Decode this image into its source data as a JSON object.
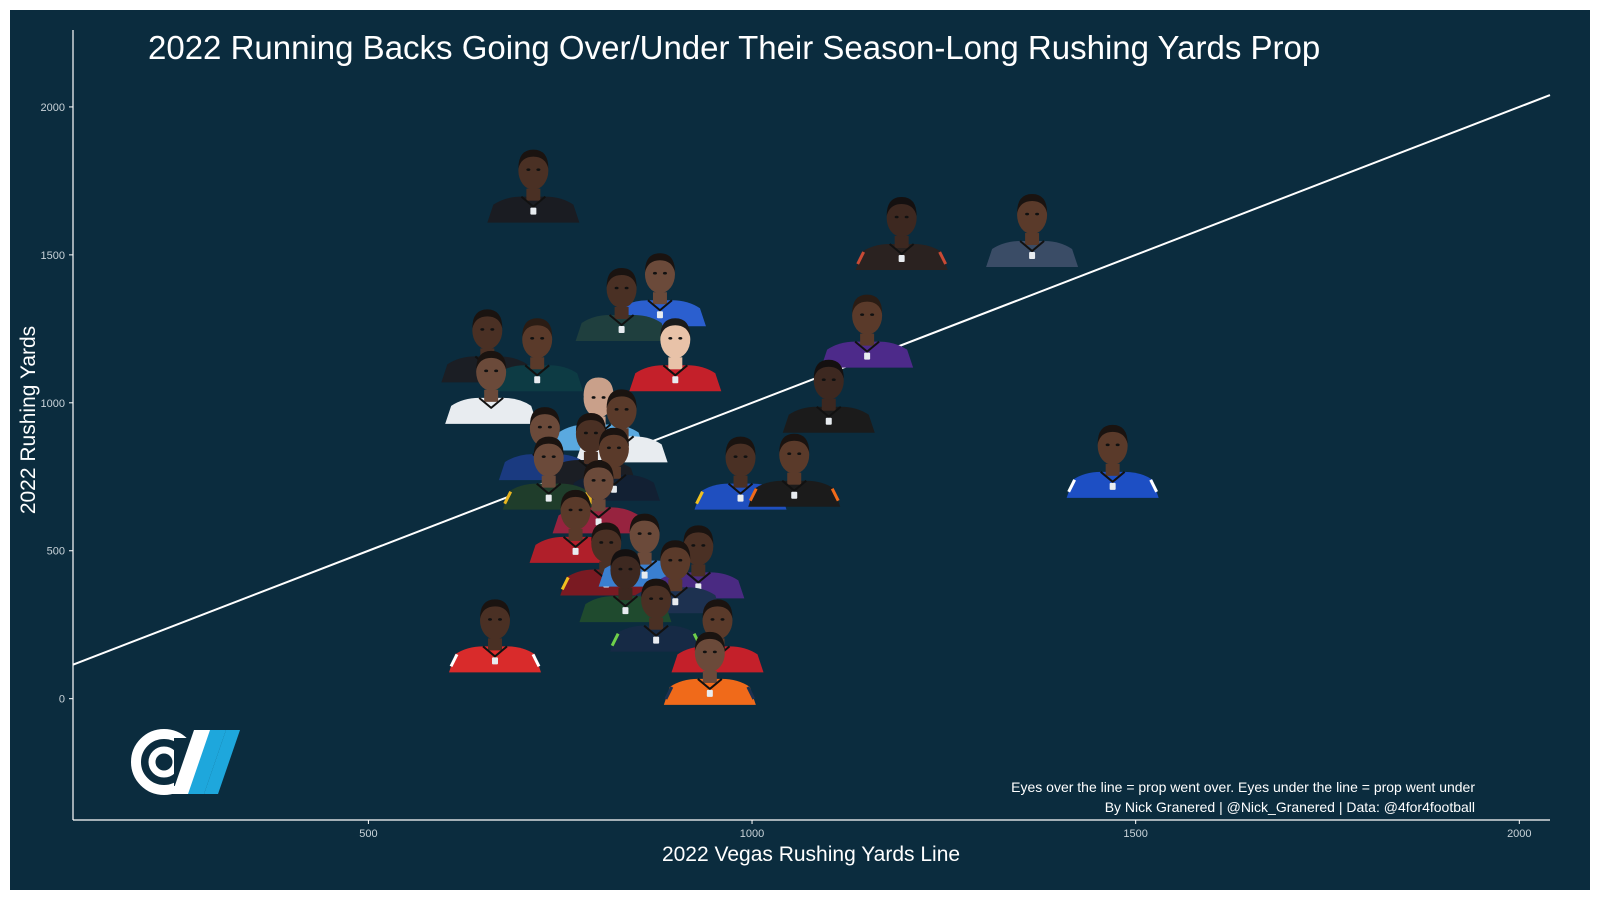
{
  "colors": {
    "background": "#0b2c3e",
    "frame": "#ffffff",
    "axis": "#ffffff",
    "reference_line": "#ffffff",
    "logo_white": "#ffffff",
    "logo_blue": "#1ea7dc"
  },
  "caption": {
    "line1": "Eyes over the line = prop went over. Eyes under the line = prop went under",
    "line2": "By Nick Granered | @Nick_Granered | Data: @4for4football"
  },
  "logo": {
    "icon": "cw-logo-icon"
  },
  "chart_data": {
    "type": "scatter",
    "title": "2022 Running Backs Going Over/Under Their Season-Long Rushing Yards Prop",
    "xlabel": "2022 Vegas Rushing Yards Line",
    "ylabel": "2022 Rushing Yards",
    "xlim": [
      115,
      2040
    ],
    "ylim": [
      -410,
      2260
    ],
    "x_ticks": [
      500,
      1000,
      1500,
      2000
    ],
    "y_ticks": [
      0,
      500,
      1000,
      1500,
      2000
    ],
    "x_tick_labels": [
      "500",
      "1000",
      "1500",
      "2000"
    ],
    "y_tick_labels": [
      "0",
      "500",
      "1000",
      "1500",
      "2000"
    ],
    "grid": false,
    "legend": "none",
    "reference_line": {
      "x1": 115,
      "y1": 115,
      "x2": 2040,
      "y2": 2040,
      "label": "y = x"
    },
    "marker": "player headshot",
    "points": [
      {
        "x": 715,
        "y": 1690,
        "jersey": "#1a1c22",
        "skin": "#4a3024",
        "hair": "#1a1310"
      },
      {
        "x": 1195,
        "y": 1530,
        "jersey": "#2a2220",
        "skin": "#3d2820",
        "hair": "#141010",
        "trim": "#c94a35"
      },
      {
        "x": 1365,
        "y": 1540,
        "jersey": "#3a4c66",
        "skin": "#5a3a2a",
        "hair": "#1a1310"
      },
      {
        "x": 880,
        "y": 1340,
        "jersey": "#2b5fcf",
        "skin": "#6b4a3a",
        "hair": "#1a1310"
      },
      {
        "x": 830,
        "y": 1290,
        "jersey": "#1f3f3e",
        "skin": "#4a3024",
        "hair": "#1a1310"
      },
      {
        "x": 900,
        "y": 1120,
        "jersey": "#c4202a",
        "skin": "#e8c2a8",
        "hair": "#1b1b1b"
      },
      {
        "x": 655,
        "y": 1150,
        "jersey": "#1b1e24",
        "skin": "#4a3024",
        "hair": "#1a1310"
      },
      {
        "x": 720,
        "y": 1120,
        "jersey": "#0d3b44",
        "skin": "#5a3a2a",
        "hair": "#2a1c14"
      },
      {
        "x": 1150,
        "y": 1200,
        "jersey": "#4d2a8a",
        "skin": "#5a3a2a",
        "hair": "#2a1c14"
      },
      {
        "x": 1100,
        "y": 980,
        "jersey": "#1b1b1b",
        "skin": "#3d2820",
        "hair": "#141010"
      },
      {
        "x": 660,
        "y": 1010,
        "jersey": "#e8ecf0",
        "skin": "#6b4a3a",
        "hair": "#1a1310"
      },
      {
        "x": 800,
        "y": 920,
        "jersey": "#5aa9e0",
        "skin": "#c9a08a",
        "hair": "#c9a08a"
      },
      {
        "x": 830,
        "y": 880,
        "jersey": "#e8ecf0",
        "skin": "#5a3a2a",
        "hair": "#1a1310"
      },
      {
        "x": 730,
        "y": 820,
        "jersey": "#1a3a80",
        "skin": "#6b4a3a",
        "hair": "#1a1310"
      },
      {
        "x": 790,
        "y": 800,
        "jersey": "#1b1e24",
        "skin": "#4a3024",
        "hair": "#1a1310"
      },
      {
        "x": 820,
        "y": 750,
        "jersey": "#122033",
        "skin": "#5a3a2a",
        "hair": "#1a1310"
      },
      {
        "x": 735,
        "y": 720,
        "jersey": "#1f3d2b",
        "skin": "#6b4a3a",
        "hair": "#1a1310",
        "trim": "#e8b520"
      },
      {
        "x": 985,
        "y": 720,
        "jersey": "#1f4fbf",
        "skin": "#4a3024",
        "hair": "#1a1310",
        "trim": "#f0c020"
      },
      {
        "x": 1055,
        "y": 730,
        "jersey": "#1b1b1b",
        "skin": "#5a3a2a",
        "hair": "#1a1310",
        "trim": "#f06a1a"
      },
      {
        "x": 800,
        "y": 640,
        "jersey": "#97233f",
        "skin": "#6b4a3a",
        "hair": "#1a1310"
      },
      {
        "x": 1470,
        "y": 760,
        "jersey": "#1d4fc4",
        "skin": "#5a3a2a",
        "hair": "#1a1310",
        "trim": "#ffffff"
      },
      {
        "x": 770,
        "y": 540,
        "jersey": "#b01f2a",
        "skin": "#5a3a2a",
        "hair": "#1a1310"
      },
      {
        "x": 810,
        "y": 430,
        "jersey": "#7a1a22",
        "skin": "#4a3024",
        "hair": "#1a1310",
        "trim": "#f0c020"
      },
      {
        "x": 860,
        "y": 460,
        "jersey": "#3a7fd0",
        "skin": "#6b4a3a",
        "hair": "#1a1310"
      },
      {
        "x": 930,
        "y": 420,
        "jersey": "#4a2a82",
        "skin": "#4a3024",
        "hair": "#1a1310"
      },
      {
        "x": 900,
        "y": 370,
        "jersey": "#1d3150",
        "skin": "#5a3a2a",
        "hair": "#1a1310"
      },
      {
        "x": 835,
        "y": 340,
        "jersey": "#1f4a2e",
        "skin": "#3d2820",
        "hair": "#141010"
      },
      {
        "x": 875,
        "y": 240,
        "jersey": "#162a45",
        "skin": "#4a3024",
        "hair": "#1a1310",
        "trim": "#6fd04a"
      },
      {
        "x": 665,
        "y": 170,
        "jersey": "#d92b2b",
        "skin": "#4a3024",
        "hair": "#1a1310",
        "trim": "#ffffff"
      },
      {
        "x": 955,
        "y": 170,
        "jersey": "#c4202a",
        "skin": "#5a3a2a",
        "hair": "#1a1310"
      },
      {
        "x": 945,
        "y": 60,
        "jersey": "#f06a1a",
        "skin": "#6b4a3a",
        "hair": "#1a1310",
        "trim": "#1d3150"
      }
    ]
  }
}
